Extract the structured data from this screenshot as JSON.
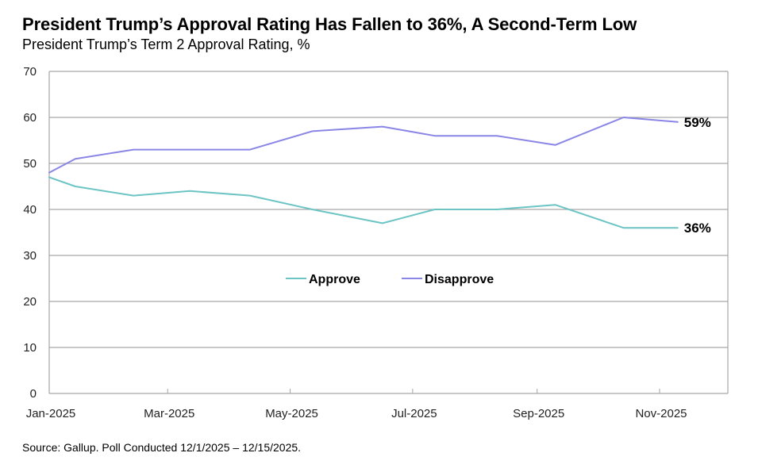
{
  "header": {
    "title": "President Trump’s Approval Rating Has Fallen to 36%, A Second-Term Low",
    "subtitle": "President Trump’s Term 2 Approval Rating, %"
  },
  "footer": {
    "source": "Source: Gallup. Poll Conducted 12/1/2025 – 12/15/2025."
  },
  "chart_data": {
    "type": "line",
    "title": "President Trump’s Approval Rating Has Fallen to 36%, A Second-Term Low",
    "subtitle": "President Trump’s Term 2 Approval Rating, %",
    "xlabel": "",
    "ylabel": "",
    "x_axis": {
      "type": "date",
      "range": [
        "2025-01-01",
        "2025-12-05"
      ],
      "ticks": [
        {
          "date": "2025-01-01",
          "label": "Jan-2025"
        },
        {
          "date": "2025-03-01",
          "label": "Mar-2025"
        },
        {
          "date": "2025-05-01",
          "label": "May-2025"
        },
        {
          "date": "2025-07-01",
          "label": "Jul-2025"
        },
        {
          "date": "2025-09-01",
          "label": "Sep-2025"
        },
        {
          "date": "2025-11-01",
          "label": "Nov-2025"
        }
      ]
    },
    "ylim": [
      0,
      70
    ],
    "yticks": [
      0,
      10,
      20,
      30,
      40,
      50,
      60,
      70
    ],
    "grid": "horizontal",
    "legend": {
      "placement": "center"
    },
    "x": [
      "2025-01-01",
      "2025-01-14",
      "2025-02-12",
      "2025-03-12",
      "2025-04-11",
      "2025-05-12",
      "2025-06-16",
      "2025-07-12",
      "2025-08-12",
      "2025-09-10",
      "2025-10-14",
      "2025-11-10"
    ],
    "series": [
      {
        "name": "Approve",
        "color": "#6cc4c4",
        "values": [
          47,
          45,
          43,
          44,
          43,
          40,
          37,
          40,
          40,
          41,
          36,
          36
        ],
        "end_label": "36%"
      },
      {
        "name": "Disapprove",
        "color": "#8a86e6",
        "values": [
          48,
          51,
          53,
          53,
          53,
          57,
          58,
          56,
          56,
          54,
          60,
          59
        ],
        "end_label": "59%"
      }
    ]
  }
}
